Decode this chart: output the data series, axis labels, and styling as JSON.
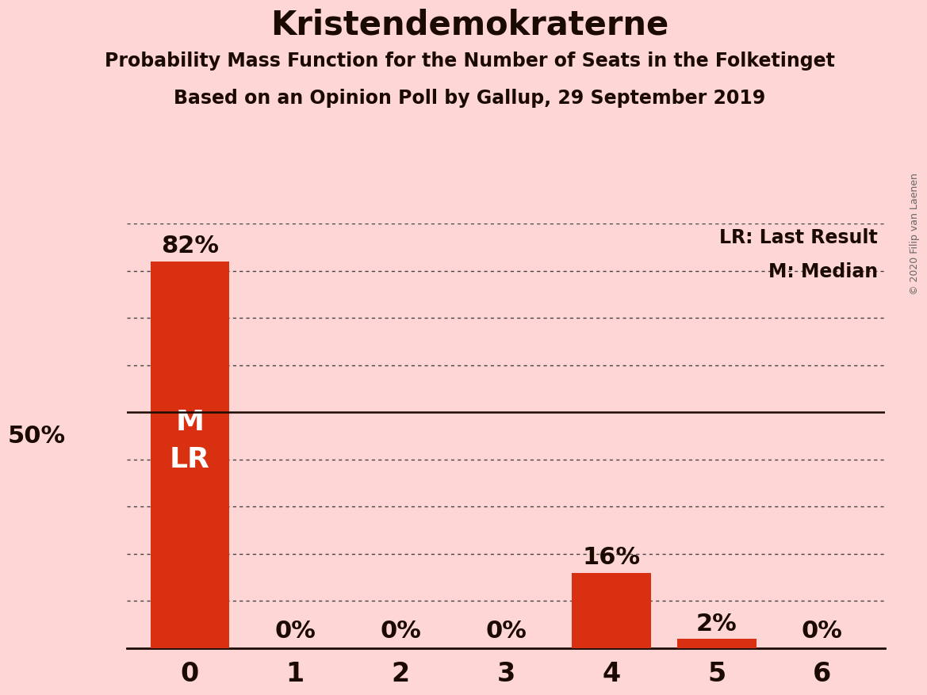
{
  "title": "Kristendemokraterne",
  "subtitle1": "Probability Mass Function for the Number of Seats in the Folketinget",
  "subtitle2": "Based on an Opinion Poll by Gallup, 29 September 2019",
  "copyright": "© 2020 Filip van Laenen",
  "categories": [
    0,
    1,
    2,
    3,
    4,
    5,
    6
  ],
  "values": [
    0.82,
    0.0,
    0.0,
    0.0,
    0.16,
    0.02,
    0.0
  ],
  "bar_color": "#D83010",
  "background_color": "#FFD6D6",
  "ylabel_text": "50%",
  "ylabel_ypos": 0.5,
  "median_seat": 0,
  "last_result_seat": 0,
  "grid_lines": [
    0.1,
    0.2,
    0.3,
    0.4,
    0.5,
    0.6,
    0.7,
    0.8,
    0.9
  ],
  "solid_line": 0.5,
  "legend_lr": "LR: Last Result",
  "legend_m": "M: Median",
  "title_fontsize": 30,
  "subtitle_fontsize": 17,
  "label_fontsize": 22,
  "bar_label_fontsize": 22,
  "inside_label_fontsize": 26,
  "axis_tick_fontsize": 24,
  "ylim": [
    0,
    0.9
  ],
  "xlim": [
    -0.6,
    6.6
  ]
}
